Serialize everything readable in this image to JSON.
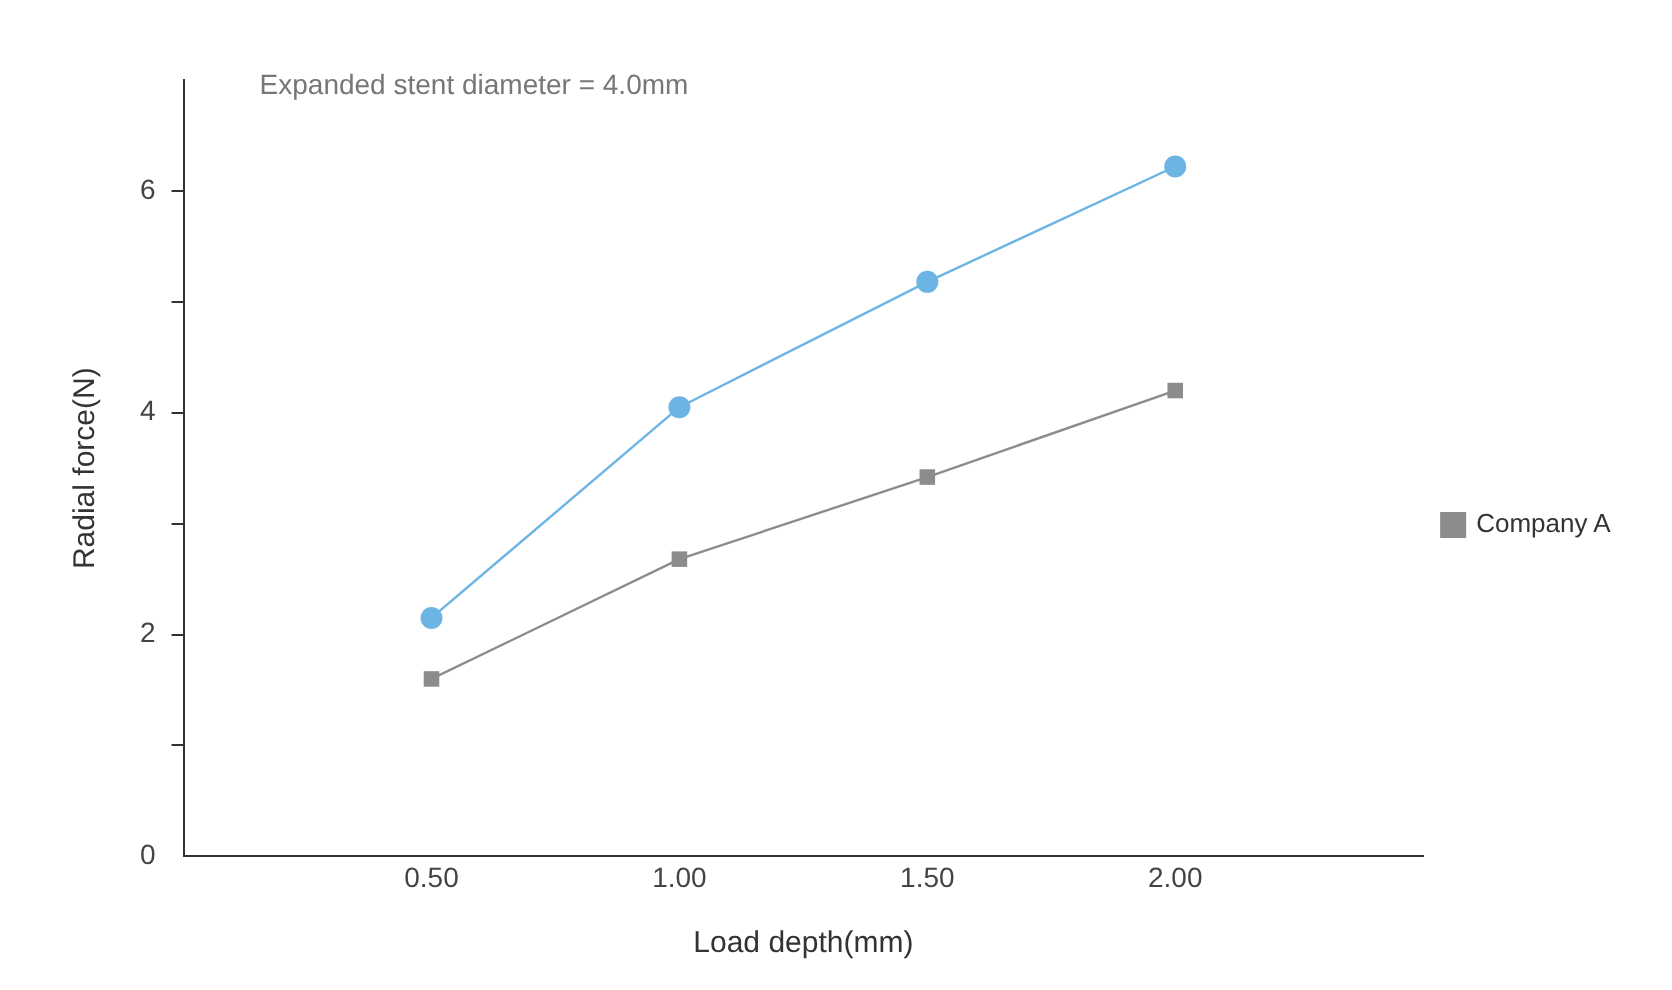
{
  "chart_data": {
    "type": "line",
    "xlabel": "Load depth(mm)",
    "ylabel": "Radial force(N)",
    "annotations": [
      "Expanded stent diameter = 4.0mm"
    ],
    "x": [
      0.5,
      1.0,
      1.5,
      2.0
    ],
    "series": [
      {
        "color": "#6cb4e4",
        "marker": "circle",
        "values": [
          2.15,
          4.05,
          5.18,
          6.22
        ]
      },
      {
        "name": "Company A",
        "color": "#8c8c8c",
        "marker": "square",
        "values": [
          1.6,
          2.68,
          3.42,
          4.2
        ]
      }
    ],
    "xlim": [
      0,
      2.5
    ],
    "xticks": [
      {
        "value": 0.5,
        "label": "0.50"
      },
      {
        "value": 1,
        "label": "1.00"
      },
      {
        "value": 1.5,
        "label": "1.50"
      },
      {
        "value": 2,
        "label": "2.00"
      }
    ],
    "ylim": [
      0,
      7
    ],
    "yticks": [
      0,
      {
        "value": 1,
        "label": null
      },
      2,
      {
        "value": 3,
        "label": null
      },
      4,
      {
        "value": 5,
        "label": null
      },
      6
    ],
    "grid": false,
    "legend": "right",
    "line_style": "solid"
  }
}
